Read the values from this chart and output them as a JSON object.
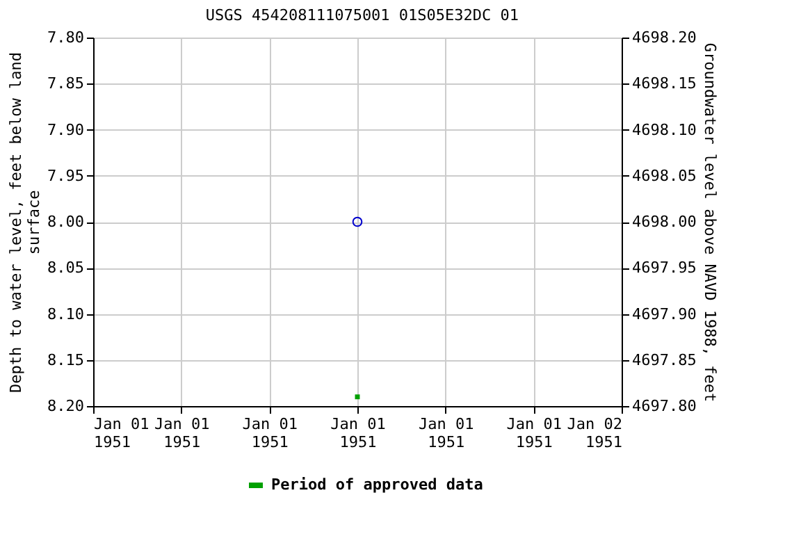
{
  "chart_data": {
    "type": "scatter",
    "title": "USGS 454208111075001 01S05E32DC  01",
    "xlabel": null,
    "ylabel": "Depth to water level, feet below land\nsurface",
    "y2label": "Groundwater level above NAVD 1988, feet",
    "x": [
      "1951-01-01T12:00"
    ],
    "series": [
      {
        "marker": "circle",
        "color": "#0000cc",
        "values": [
          8.0
        ]
      },
      {
        "marker": "square",
        "name": "Period of approved data",
        "color": "#00a000",
        "values": [
          8.19
        ]
      }
    ],
    "xlim": [
      "1951-01-01T00:00",
      "1951-01-02T00:00"
    ],
    "xticks": [
      {
        "value": "1951-01-01T00:00",
        "label": "Jan 01\n1951"
      },
      {
        "value": "1951-01-01T04:00",
        "label": "Jan 01\n1951"
      },
      {
        "value": "1951-01-01T08:00",
        "label": "Jan 01\n1951"
      },
      {
        "value": "1951-01-01T12:00",
        "label": "Jan 01\n1951"
      },
      {
        "value": "1951-01-01T16:00",
        "label": "Jan 01\n1951"
      },
      {
        "value": "1951-01-01T20:00",
        "label": "Jan 01\n1951"
      },
      {
        "value": "1951-01-02T00:00",
        "label": "Jan 02\n1951"
      }
    ],
    "ylim": [
      8.2,
      7.8
    ],
    "yticks": [
      {
        "value": 7.8,
        "label": "7.80"
      },
      {
        "value": 7.85,
        "label": "7.85"
      },
      {
        "value": 7.9,
        "label": "7.90"
      },
      {
        "value": 7.95,
        "label": "7.95"
      },
      {
        "value": 8.0,
        "label": "8.00"
      },
      {
        "value": 8.05,
        "label": "8.05"
      },
      {
        "value": 8.1,
        "label": "8.10"
      },
      {
        "value": 8.15,
        "label": "8.15"
      },
      {
        "value": 8.2,
        "label": "8.20"
      }
    ],
    "y2lim": [
      4697.8,
      4698.2
    ],
    "y2ticks": [
      {
        "value": 4697.8,
        "label": "4697.80"
      },
      {
        "value": 4697.85,
        "label": "4697.85"
      },
      {
        "value": 4697.9,
        "label": "4697.90"
      },
      {
        "value": 4697.95,
        "label": "4697.95"
      },
      {
        "value": 4698.0,
        "label": "4698.00"
      },
      {
        "value": 4698.05,
        "label": "4698.05"
      },
      {
        "value": 4698.1,
        "label": "4698.10"
      },
      {
        "value": 4698.15,
        "label": "4698.15"
      },
      {
        "value": 4698.2,
        "label": "4698.20"
      }
    ],
    "grid": true,
    "legend": "bottom"
  }
}
